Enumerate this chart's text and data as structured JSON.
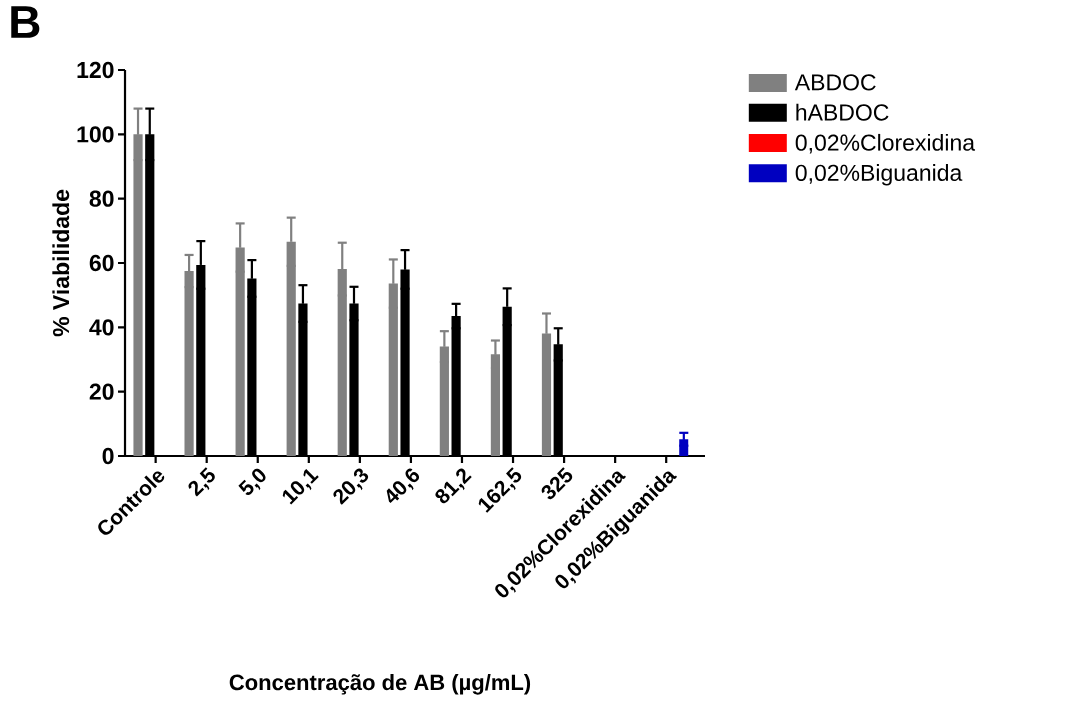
{
  "chart_data": {
    "type": "bar",
    "title": "B",
    "xlabel": "Concentração de AB (µg/mL)",
    "ylabel": "% Viabilidade",
    "categories": [
      "Controle",
      "2,5",
      "5,0",
      "10,1",
      "20,3",
      "40,6",
      "81,2",
      "162,5",
      "325",
      "0,02%Clorexidina",
      "0,02%Biguanida"
    ],
    "series": [
      {
        "name": "ABDOC",
        "color": "#808080",
        "values": [
          100,
          57.5,
          64.8,
          66.6,
          58.1,
          53.6,
          34.0,
          31.6,
          38.1,
          null,
          null
        ],
        "errors": [
          8,
          5,
          7.5,
          7.5,
          8.2,
          7.5,
          4.8,
          4.3,
          6.2,
          null,
          null
        ]
      },
      {
        "name": "hABDOC",
        "color": "#000000",
        "values": [
          100,
          59.4,
          55.2,
          47.4,
          47.4,
          58.0,
          43.5,
          46.4,
          34.7,
          null,
          null
        ],
        "errors": [
          8,
          7.4,
          5.7,
          5.7,
          5.2,
          6,
          3.8,
          5.7,
          5,
          null,
          null
        ]
      },
      {
        "name": "0,02%Clorexidina",
        "color": "#ff0000",
        "values": [
          null,
          null,
          null,
          null,
          null,
          null,
          null,
          null,
          null,
          0,
          null
        ]
      },
      {
        "name": "0,02%Biguanida",
        "color": "#0000c0",
        "values": [
          null,
          null,
          null,
          null,
          null,
          null,
          null,
          null,
          null,
          null,
          5.2
        ],
        "errors": [
          null,
          null,
          null,
          null,
          null,
          null,
          null,
          null,
          null,
          null,
          2
        ]
      }
    ],
    "ylim": [
      0,
      120
    ],
    "yticks": [
      0,
      20,
      40,
      60,
      80,
      100,
      120
    ],
    "grid": false,
    "legend": "top right"
  }
}
